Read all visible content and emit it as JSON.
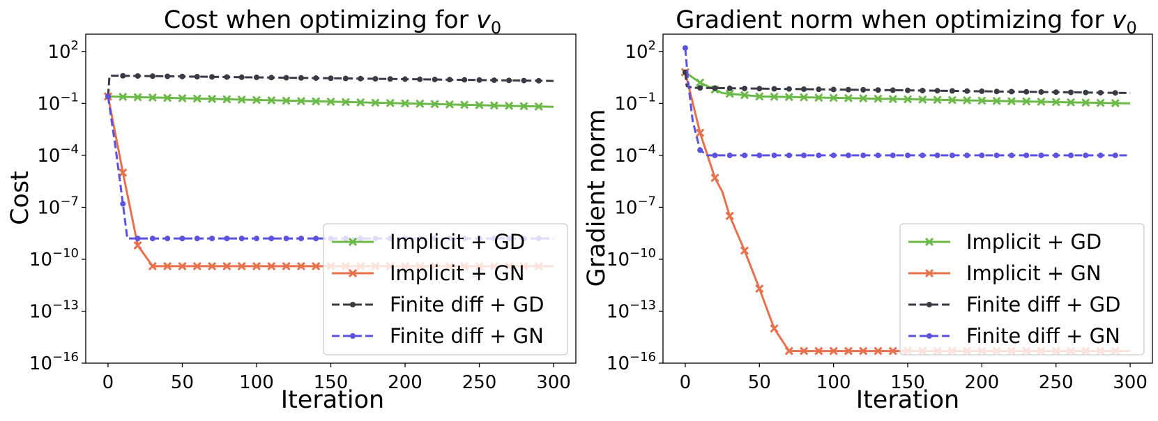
{
  "chart_data": [
    {
      "type": "line",
      "title_prefix": "Cost when optimizing for ",
      "title_var": "v",
      "title_sub": "0",
      "xlabel": "Iteration",
      "ylabel": "Cost",
      "yscale": "log",
      "xlim": [
        -15,
        315
      ],
      "ylim_exp": [
        -16,
        3
      ],
      "xticks": [
        0,
        50,
        100,
        150,
        200,
        250,
        300
      ],
      "ytick_exps": [
        2,
        -1,
        -4,
        -7,
        -10,
        -13,
        -16
      ],
      "legend_position": "lower-right",
      "series": [
        {
          "name": "Implicit + GD",
          "color": "#6cb94a",
          "dash": "solid",
          "marker": "x",
          "x": [
            0,
            300
          ],
          "log10y": [
            -0.6,
            -1.2
          ]
        },
        {
          "name": "Implicit + GN",
          "color": "#e8704d",
          "dash": "solid",
          "marker": "x",
          "x": [
            0,
            10,
            20,
            30,
            300
          ],
          "log10y": [
            -0.6,
            -5.0,
            -9.2,
            -10.4,
            -10.4
          ]
        },
        {
          "name": "Finite diff + GD",
          "color": "#3a3a45",
          "dash": "dashed",
          "marker": "dot",
          "x": [
            0,
            1,
            5,
            300
          ],
          "log10y": [
            -0.6,
            0.6,
            0.6,
            0.3
          ]
        },
        {
          "name": "Finite diff + GN",
          "color": "#5c52e0",
          "dash": "dashed",
          "marker": "dot",
          "x": [
            0,
            5,
            10,
            13,
            300
          ],
          "log10y": [
            -0.6,
            -3.5,
            -6.8,
            -8.8,
            -8.8
          ]
        }
      ]
    },
    {
      "type": "line",
      "title_prefix": "Gradient norm when optimizing for ",
      "title_var": "v",
      "title_sub": "0",
      "xlabel": "Iteration",
      "ylabel": "Gradient norm",
      "yscale": "log",
      "xlim": [
        -15,
        315
      ],
      "ylim_exp": [
        -16,
        3
      ],
      "xticks": [
        0,
        50,
        100,
        150,
        200,
        250,
        300
      ],
      "ytick_exps": [
        2,
        -1,
        -4,
        -7,
        -10,
        -13,
        -16
      ],
      "legend_position": "lower-right",
      "series": [
        {
          "name": "Implicit + GD",
          "color": "#6cb94a",
          "dash": "solid",
          "marker": "x",
          "x": [
            0,
            10,
            25,
            50,
            300
          ],
          "log10y": [
            0.8,
            0.2,
            -0.4,
            -0.6,
            -1.0
          ]
        },
        {
          "name": "Implicit + GN",
          "color": "#e8704d",
          "dash": "solid",
          "marker": "x",
          "x": [
            0,
            10,
            20,
            25,
            30,
            40,
            50,
            60,
            70,
            300
          ],
          "log10y": [
            0.8,
            -2.7,
            -5.3,
            -6.1,
            -7.5,
            -9.5,
            -11.7,
            -14.0,
            -15.3,
            -15.3
          ]
        },
        {
          "name": "Finite diff + GD",
          "color": "#3a3a45",
          "dash": "dashed",
          "marker": "dot",
          "x": [
            0,
            1,
            5,
            300
          ],
          "log10y": [
            0.8,
            0.0,
            -0.1,
            -0.4
          ]
        },
        {
          "name": "Finite diff + GN",
          "color": "#5c52e0",
          "dash": "dashed",
          "marker": "dot",
          "x": [
            0,
            2,
            5,
            10,
            15,
            300
          ],
          "log10y": [
            2.2,
            0.2,
            -2.0,
            -3.7,
            -4.0,
            -4.0
          ]
        }
      ]
    }
  ]
}
